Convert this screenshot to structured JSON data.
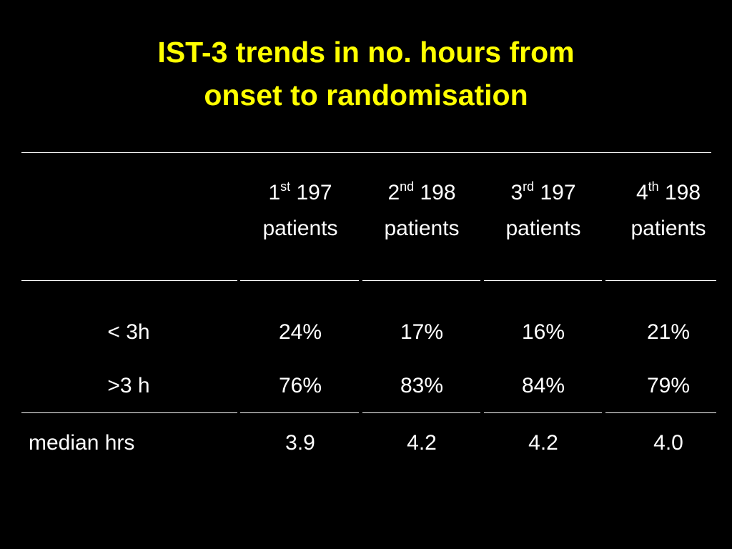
{
  "title": {
    "line1": "IST-3 trends in no. hours from",
    "line2": "onset to randomisation"
  },
  "table": {
    "header": [
      {
        "ordinal": "1",
        "suffix": "st",
        "count": "197",
        "label": "patients"
      },
      {
        "ordinal": "2",
        "suffix": "nd",
        "count": "198",
        "label": "patients"
      },
      {
        "ordinal": "3",
        "suffix": "rd",
        "count": "197",
        "label": "patients"
      },
      {
        "ordinal": "4",
        "suffix": "th",
        "count": "198",
        "label": "patients"
      }
    ],
    "rows": [
      [
        "< 3h",
        "24%",
        "17%",
        "16%",
        "21%"
      ],
      [
        ">3 h",
        "76%",
        "83%",
        "84%",
        "79%"
      ],
      [
        "median hrs",
        "3.9",
        "4.2",
        "4.2",
        "4.0"
      ]
    ]
  }
}
